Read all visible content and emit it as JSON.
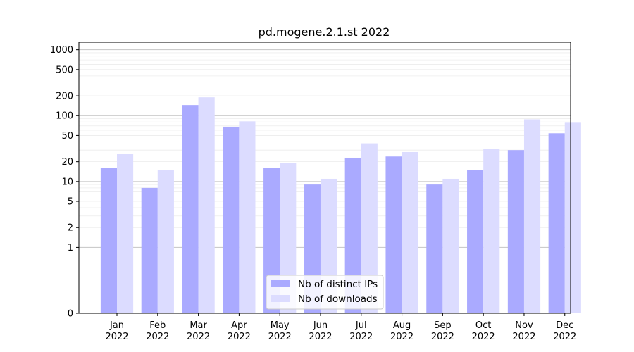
{
  "chart_data": {
    "type": "bar",
    "title": "pd.mogene.2.1.st 2022",
    "xlabel": "",
    "ylabel": "",
    "yscale": "symlog",
    "ylim": [
      0,
      1300
    ],
    "yticks": [
      0,
      1,
      2,
      5,
      10,
      20,
      50,
      100,
      200,
      500,
      1000
    ],
    "grid": true,
    "legend_position": "bottom-center",
    "categories": [
      "Jan\n2022",
      "Feb\n2022",
      "Mar\n2022",
      "Apr\n2022",
      "May\n2022",
      "Jun\n2022",
      "Jul\n2022",
      "Aug\n2022",
      "Sep\n2022",
      "Oct\n2022",
      "Nov\n2022",
      "Dec\n2022"
    ],
    "series": [
      {
        "name": "Nb of distinct IPs",
        "color": "#aaaaff",
        "values": [
          16,
          8,
          145,
          68,
          16,
          9,
          23,
          24,
          9,
          15,
          30,
          54
        ]
      },
      {
        "name": "Nb of downloads",
        "color": "#dcdcff",
        "values": [
          26,
          15,
          190,
          82,
          19,
          11,
          38,
          28,
          11,
          31,
          88,
          78
        ]
      }
    ]
  }
}
